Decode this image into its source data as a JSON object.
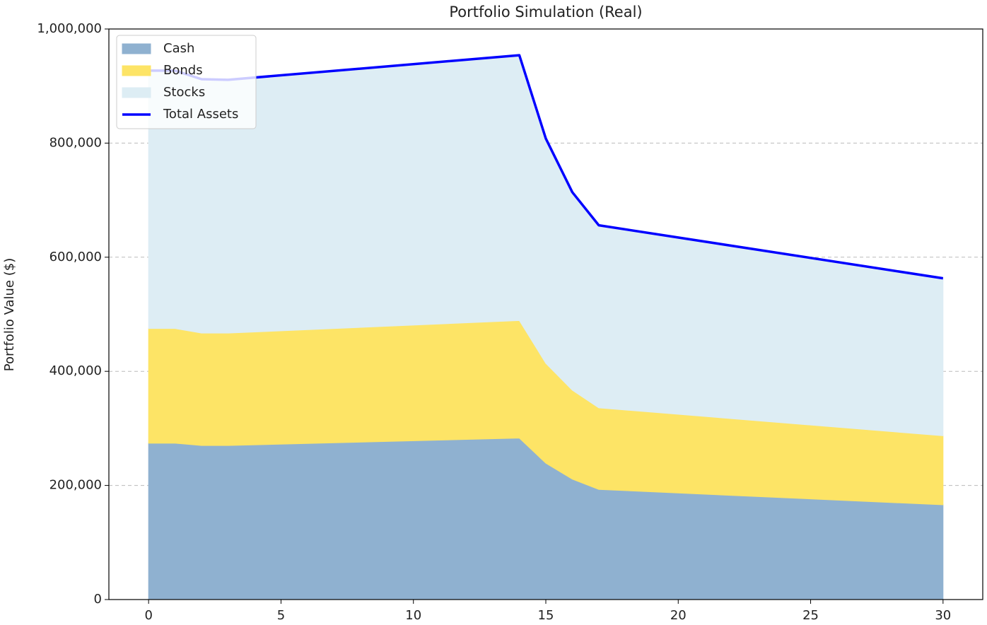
{
  "chart_data": {
    "type": "stacked_area",
    "title": "Portfolio Simulation (Real)",
    "y_label": "Portfolio Value ($)",
    "x": [
      0,
      1,
      2,
      3,
      14,
      15,
      16,
      17,
      30
    ],
    "series": [
      {
        "name": "Cash",
        "color": "#8fb1d0",
        "values": [
          274000,
          274000,
          270000,
          270000,
          283000,
          239000,
          211000,
          193000,
          166000
        ]
      },
      {
        "name": "Bonds",
        "color": "#fde466",
        "values": [
          201000,
          201000,
          197000,
          197000,
          206000,
          175000,
          156000,
          143000,
          121000
        ]
      },
      {
        "name": "Stocks",
        "color": "#ddedf4",
        "values": [
          452000,
          452000,
          445000,
          444000,
          465000,
          394000,
          347000,
          320000,
          276000
        ]
      }
    ],
    "line": {
      "name": "Total Assets",
      "color": "#0000ff",
      "values": [
        927000,
        927000,
        912000,
        911000,
        954000,
        808000,
        714000,
        656000,
        563000
      ]
    },
    "xlim": [
      -1.5,
      31.5
    ],
    "ylim": [
      0,
      1000000
    ],
    "xticks": [
      0,
      5,
      10,
      15,
      20,
      25,
      30
    ],
    "yticks": [
      0,
      {
        "value": 200000,
        "label": "200,000"
      },
      {
        "value": 400000,
        "label": "400,000"
      },
      {
        "value": 600000,
        "label": "600,000"
      },
      {
        "value": 800000,
        "label": "800,000"
      },
      {
        "value": 1000000,
        "label": "1,000,000"
      }
    ],
    "grid": true,
    "legend": "upper left"
  }
}
